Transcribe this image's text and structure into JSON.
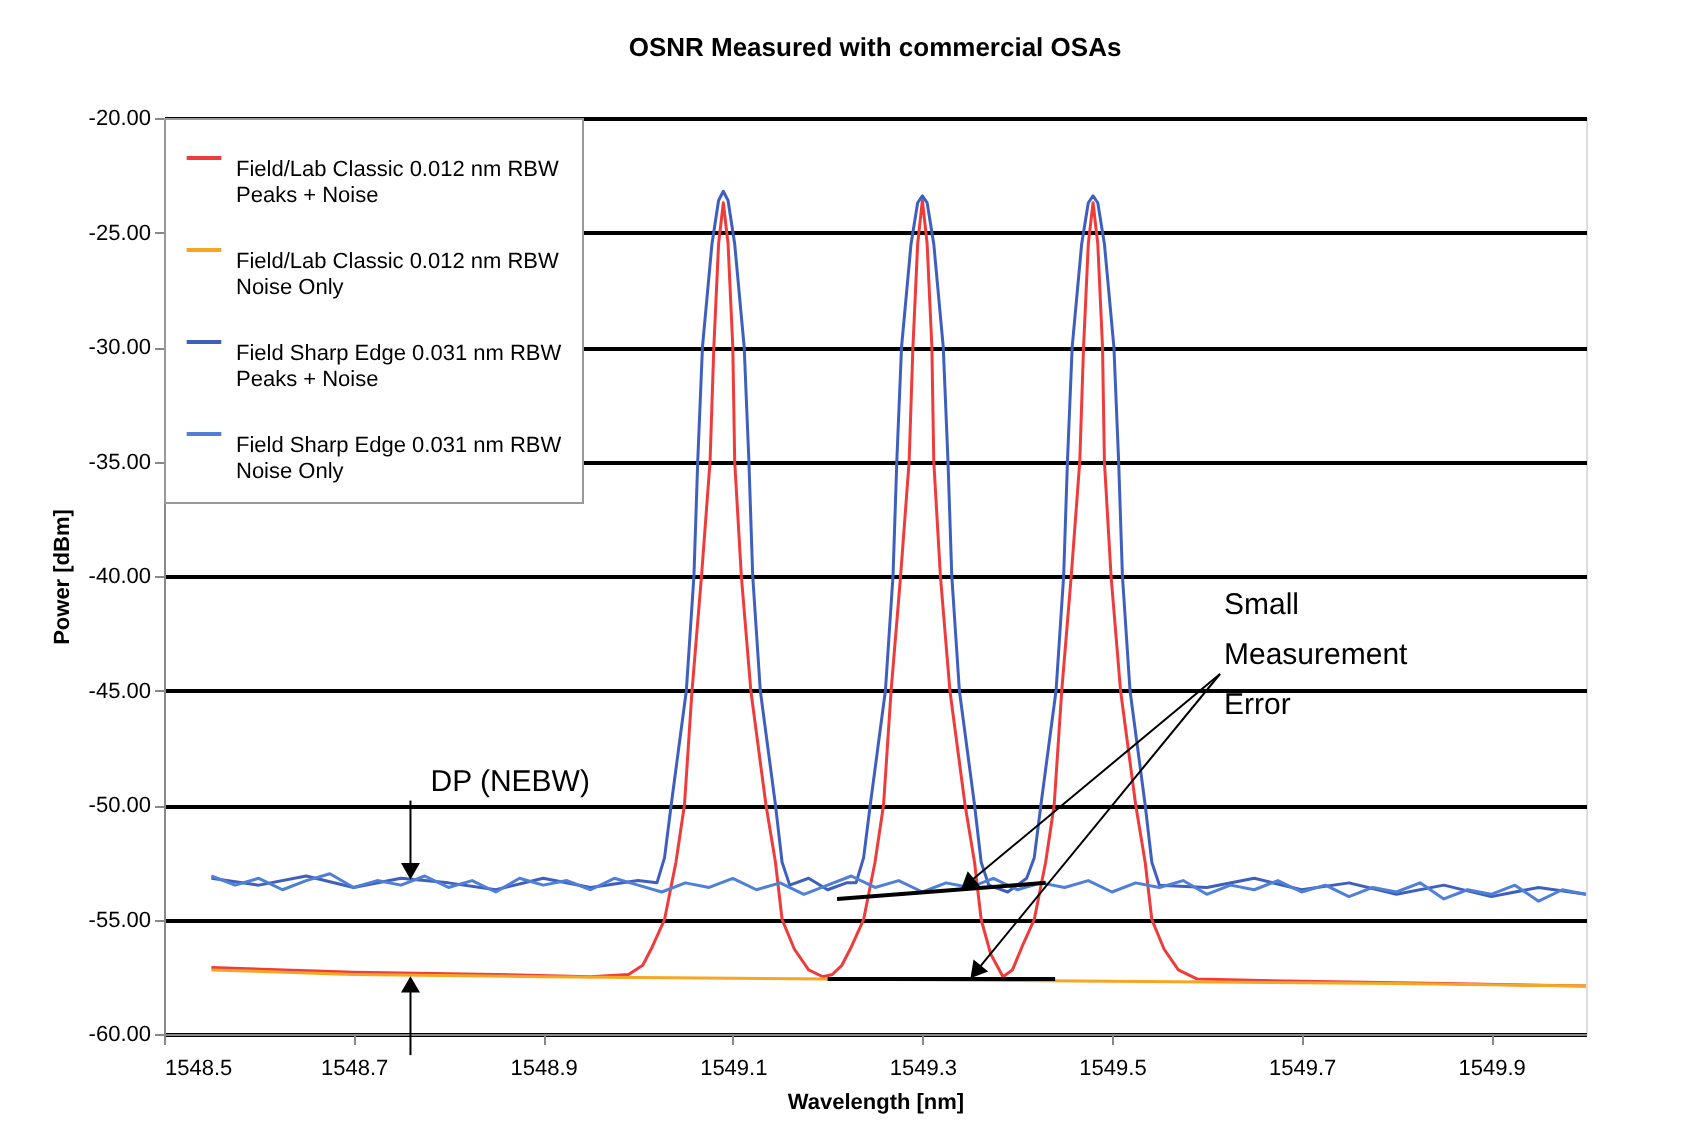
{
  "chart_data": {
    "type": "line",
    "title": "OSNR Measured with commercial OSAs",
    "xlabel": "Wavelength [nm]",
    "ylabel": "Power [dBm]",
    "xlim": [
      1548.5,
      1550.0
    ],
    "ylim": [
      -60,
      -20
    ],
    "xticks": [
      1548.5,
      1548.7,
      1548.9,
      1549.1,
      1549.3,
      1549.5,
      1549.7,
      1549.9
    ],
    "yticks": [
      {
        "value": -60,
        "label": "-60.00"
      },
      {
        "value": -55,
        "label": "-55.00"
      },
      {
        "value": -50,
        "label": "-50.00"
      },
      {
        "value": -45,
        "label": "-45.00"
      },
      {
        "value": -40,
        "label": "-40.00"
      },
      {
        "value": -35,
        "label": "-35.00"
      },
      {
        "value": -30,
        "label": "-30.00"
      },
      {
        "value": -25,
        "label": "-25.00"
      },
      {
        "value": -20,
        "label": "-20.00"
      }
    ],
    "grid": "y",
    "legend": "top left",
    "series": [
      {
        "name": "Field/Lab Classic 0.012 nm RBW Peaks + Noise",
        "color": "#ee3b3b",
        "x": [
          1548.55,
          1548.7,
          1548.85,
          1548.95,
          1548.99,
          1549.005,
          1549.015,
          1549.028,
          1549.04,
          1549.049,
          1549.057,
          1549.063,
          1549.067,
          1549.076,
          1549.08,
          1549.085,
          1549.09,
          1549.095,
          1549.1,
          1549.102,
          1549.109,
          1549.119,
          1549.127,
          1549.135,
          1549.145,
          1549.152,
          1549.165,
          1549.18,
          1549.195,
          1549.205,
          1549.215,
          1549.225,
          1549.238,
          1549.25,
          1549.259,
          1549.267,
          1549.273,
          1549.277,
          1549.286,
          1549.29,
          1549.295,
          1549.3,
          1549.305,
          1549.31,
          1549.312,
          1549.319,
          1549.329,
          1549.337,
          1549.345,
          1549.355,
          1549.362,
          1549.372,
          1549.385,
          1549.395,
          1549.405,
          1549.418,
          1549.43,
          1549.439,
          1549.447,
          1549.453,
          1549.457,
          1549.466,
          1549.47,
          1549.475,
          1549.48,
          1549.485,
          1549.49,
          1549.492,
          1549.499,
          1549.509,
          1549.517,
          1549.525,
          1549.535,
          1549.542,
          1549.555,
          1549.57,
          1549.59,
          1549.7,
          1549.85,
          1550.0
        ],
        "values": [
          -57.1,
          -57.3,
          -57.4,
          -57.5,
          -57.4,
          -57.0,
          -56.2,
          -55.0,
          -52.5,
          -50.0,
          -45.0,
          -42.0,
          -40.0,
          -35.0,
          -30.0,
          -25.5,
          -23.7,
          -25.5,
          -30.0,
          -35.0,
          -40.0,
          -45.0,
          -47.5,
          -50.0,
          -52.5,
          -55.0,
          -56.3,
          -57.2,
          -57.5,
          -57.4,
          -57.0,
          -56.2,
          -55.0,
          -52.5,
          -50.0,
          -45.0,
          -42.0,
          -40.0,
          -35.0,
          -30.0,
          -25.5,
          -23.6,
          -25.5,
          -30.0,
          -35.0,
          -40.0,
          -45.0,
          -47.5,
          -50.0,
          -52.5,
          -55.0,
          -56.5,
          -57.5,
          -57.2,
          -56.2,
          -55.0,
          -52.5,
          -50.0,
          -45.0,
          -42.0,
          -40.0,
          -35.0,
          -30.0,
          -25.5,
          -23.7,
          -25.5,
          -30.0,
          -35.0,
          -40.0,
          -45.0,
          -47.5,
          -50.0,
          -52.5,
          -55.0,
          -56.3,
          -57.2,
          -57.6,
          -57.7,
          -57.8,
          -57.9
        ]
      },
      {
        "name": "Field/Lab Classic 0.012 nm RBW Noise Only",
        "color": "#f5a623",
        "x": [
          1548.55,
          1548.7,
          1548.9,
          1549.2,
          1549.5,
          1549.8,
          1550.0
        ],
        "values": [
          -57.2,
          -57.4,
          -57.5,
          -57.6,
          -57.7,
          -57.8,
          -57.9
        ]
      },
      {
        "name": "Field Sharp Edge 0.031 nm RBW Peaks + Noise",
        "color": "#3f5fbf",
        "x": [
          1548.55,
          1548.6,
          1548.65,
          1548.7,
          1548.75,
          1548.8,
          1548.85,
          1548.9,
          1548.95,
          1549.0,
          1549.02,
          1549.028,
          1549.035,
          1549.043,
          1549.051,
          1549.059,
          1549.063,
          1549.068,
          1549.078,
          1549.085,
          1549.09,
          1549.095,
          1549.102,
          1549.112,
          1549.117,
          1549.121,
          1549.129,
          1549.137,
          1549.145,
          1549.152,
          1549.16,
          1549.18,
          1549.2,
          1549.22,
          1549.23,
          1549.238,
          1549.245,
          1549.253,
          1549.261,
          1549.269,
          1549.273,
          1549.278,
          1549.288,
          1549.295,
          1549.3,
          1549.305,
          1549.312,
          1549.322,
          1549.327,
          1549.331,
          1549.339,
          1549.347,
          1549.355,
          1549.362,
          1549.37,
          1549.39,
          1549.41,
          1549.418,
          1549.425,
          1549.433,
          1549.441,
          1549.449,
          1549.453,
          1549.458,
          1549.468,
          1549.475,
          1549.48,
          1549.485,
          1549.492,
          1549.502,
          1549.507,
          1549.511,
          1549.519,
          1549.527,
          1549.535,
          1549.542,
          1549.55,
          1549.6,
          1549.65,
          1549.7,
          1549.75,
          1549.8,
          1549.85,
          1549.9,
          1549.95,
          1550.0
        ],
        "values": [
          -53.2,
          -53.5,
          -53.1,
          -53.6,
          -53.2,
          -53.4,
          -53.7,
          -53.2,
          -53.6,
          -53.3,
          -53.4,
          -52.3,
          -50.0,
          -47.5,
          -45.0,
          -40.0,
          -35.0,
          -30.0,
          -25.5,
          -23.6,
          -23.2,
          -23.6,
          -25.5,
          -30.0,
          -35.0,
          -40.0,
          -45.0,
          -47.5,
          -50.0,
          -52.5,
          -53.5,
          -53.2,
          -53.7,
          -53.4,
          -53.4,
          -52.3,
          -50.0,
          -47.5,
          -45.0,
          -40.0,
          -35.0,
          -30.0,
          -25.5,
          -23.7,
          -23.4,
          -23.7,
          -25.5,
          -30.0,
          -35.0,
          -40.0,
          -45.0,
          -47.5,
          -50.0,
          -52.5,
          -53.5,
          -53.8,
          -53.2,
          -52.3,
          -50.0,
          -47.5,
          -45.0,
          -40.0,
          -35.0,
          -30.0,
          -25.5,
          -23.7,
          -23.4,
          -23.7,
          -25.5,
          -30.0,
          -35.0,
          -40.0,
          -45.0,
          -47.5,
          -50.0,
          -52.5,
          -53.5,
          -53.6,
          -53.2,
          -53.7,
          -53.4,
          -53.9,
          -53.5,
          -54.0,
          -53.6,
          -53.9
        ]
      },
      {
        "name": "Field Sharp Edge 0.031 nm RBW Noise Only",
        "color": "#4f7fd8",
        "x": [
          1548.55,
          1548.575,
          1548.6,
          1548.625,
          1548.65,
          1548.675,
          1548.7,
          1548.725,
          1548.75,
          1548.775,
          1548.8,
          1548.825,
          1548.85,
          1548.875,
          1548.9,
          1548.925,
          1548.95,
          1548.975,
          1549.0,
          1549.025,
          1549.05,
          1549.075,
          1549.1,
          1549.125,
          1549.15,
          1549.175,
          1549.2,
          1549.225,
          1549.25,
          1549.275,
          1549.3,
          1549.325,
          1549.35,
          1549.375,
          1549.4,
          1549.425,
          1549.45,
          1549.475,
          1549.5,
          1549.525,
          1549.55,
          1549.575,
          1549.6,
          1549.625,
          1549.65,
          1549.675,
          1549.7,
          1549.725,
          1549.75,
          1549.775,
          1549.8,
          1549.825,
          1549.85,
          1549.875,
          1549.9,
          1549.925,
          1549.95,
          1549.975,
          1550.0
        ],
        "values": [
          -53.1,
          -53.5,
          -53.2,
          -53.7,
          -53.3,
          -53.0,
          -53.6,
          -53.3,
          -53.5,
          -53.1,
          -53.6,
          -53.3,
          -53.8,
          -53.2,
          -53.5,
          -53.3,
          -53.7,
          -53.2,
          -53.5,
          -53.8,
          -53.4,
          -53.6,
          -53.2,
          -53.7,
          -53.4,
          -53.9,
          -53.5,
          -53.1,
          -53.6,
          -53.3,
          -53.8,
          -53.4,
          -53.6,
          -53.2,
          -53.7,
          -53.4,
          -53.6,
          -53.3,
          -53.8,
          -53.4,
          -53.6,
          -53.3,
          -53.9,
          -53.5,
          -53.7,
          -53.3,
          -53.8,
          -53.5,
          -54.0,
          -53.6,
          -53.8,
          -53.4,
          -54.1,
          -53.7,
          -53.9,
          -53.5,
          -54.2,
          -53.7,
          -53.9
        ]
      },
      {
        "color": "#000000",
        "x": [
          1549.21,
          1549.43
        ],
        "values": [
          -54.1,
          -53.4
        ]
      },
      {
        "color": "#000000",
        "x": [
          1549.2,
          1549.44
        ],
        "values": [
          -57.6,
          -57.6
        ]
      }
    ],
    "annotations": [
      {
        "text": "DP (NEBW)",
        "x": 1548.76,
        "y": -53.3
      },
      {
        "text": "Small Measurement Error",
        "x": 1549.34,
        "y": -53.7
      }
    ]
  }
}
